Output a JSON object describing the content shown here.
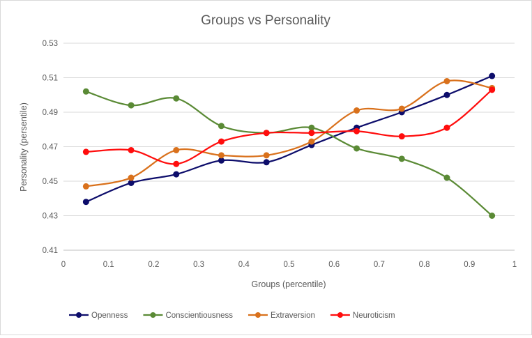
{
  "chart_data": {
    "type": "line",
    "title": "Groups vs Personality",
    "xlabel": "Groups (percentile)",
    "ylabel": "Personality (persentile)",
    "xlim": [
      0,
      1
    ],
    "ylim": [
      0.41,
      0.53
    ],
    "x_ticks": [
      "0",
      "0.1",
      "0.2",
      "0.3",
      "0.4",
      "0.5",
      "0.6",
      "0.7",
      "0.8",
      "0.9",
      "1"
    ],
    "y_ticks": [
      "0.41",
      "0.43",
      "0.45",
      "0.47",
      "0.49",
      "0.51",
      "0.53"
    ],
    "grid": "horizontal",
    "legend_position": "bottom",
    "smooth": true,
    "x": [
      0.05,
      0.15,
      0.25,
      0.35,
      0.45,
      0.55,
      0.65,
      0.75,
      0.85,
      0.95
    ],
    "series": [
      {
        "name": "Openness",
        "color": "#0d0d6b",
        "values": [
          0.438,
          0.449,
          0.454,
          0.462,
          0.461,
          0.471,
          0.481,
          0.49,
          0.5,
          0.511
        ]
      },
      {
        "name": "Conscientiousness",
        "color": "#5a8a35",
        "values": [
          0.502,
          0.494,
          0.498,
          0.482,
          0.478,
          0.481,
          0.469,
          0.463,
          0.452,
          0.43
        ]
      },
      {
        "name": "Extraversion",
        "color": "#d9711c",
        "values": [
          0.447,
          0.452,
          0.468,
          0.465,
          0.465,
          0.473,
          0.491,
          0.492,
          0.508,
          0.504
        ]
      },
      {
        "name": "Neuroticism",
        "color": "#ff0d0d",
        "values": [
          0.467,
          0.468,
          0.46,
          0.473,
          0.478,
          0.478,
          0.479,
          0.476,
          0.481,
          0.503
        ]
      }
    ]
  }
}
